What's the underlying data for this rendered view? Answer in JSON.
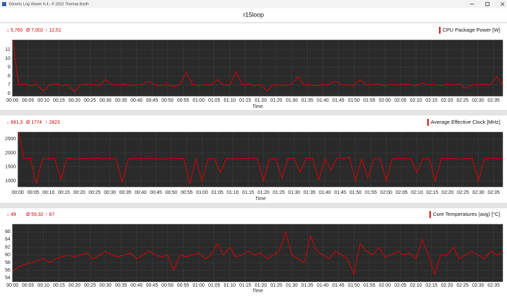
{
  "window": {
    "title": "Generic Log Viewer 6.4 - © 2022 Thomas Barth"
  },
  "header": {
    "title": "r15loop"
  },
  "chart_data": [
    {
      "type": "line",
      "stats": [
        "↓ 5,765",
        "Ø 7,002",
        "↑ 12,51"
      ],
      "x_label": "Time",
      "ylim": [
        5.7,
        12.1
      ],
      "yticks": [
        6,
        7,
        8,
        9,
        10,
        11
      ],
      "xlim": [
        0,
        158
      ],
      "xticks": [
        {
          "value": 0,
          "label": "00:00"
        },
        {
          "value": 5,
          "label": "00:05"
        },
        {
          "value": 10,
          "label": "00:10"
        },
        {
          "value": 15,
          "label": "00:15"
        },
        {
          "value": 20,
          "label": "00:20"
        },
        {
          "value": 25,
          "label": "00:25"
        },
        {
          "value": 30,
          "label": "00:30"
        },
        {
          "value": 35,
          "label": "00:35"
        },
        {
          "value": 40,
          "label": "00:40"
        },
        {
          "value": 45,
          "label": "00:45"
        },
        {
          "value": 50,
          "label": "00:50"
        },
        {
          "value": 55,
          "label": "00:55"
        },
        {
          "value": 60,
          "label": "01:00"
        },
        {
          "value": 65,
          "label": "01:05"
        },
        {
          "value": 70,
          "label": "01:10"
        },
        {
          "value": 75,
          "label": "01:15"
        },
        {
          "value": 80,
          "label": "01:20"
        },
        {
          "value": 85,
          "label": "01:25"
        },
        {
          "value": 90,
          "label": "01:30"
        },
        {
          "value": 95,
          "label": "01:35"
        },
        {
          "value": 100,
          "label": "01:40"
        },
        {
          "value": 105,
          "label": "01:45"
        },
        {
          "value": 110,
          "label": "01:50"
        },
        {
          "value": 115,
          "label": "01:55"
        },
        {
          "value": 120,
          "label": "02:00"
        },
        {
          "value": 125,
          "label": "02:05"
        },
        {
          "value": 130,
          "label": "02:10"
        },
        {
          "value": 135,
          "label": "02:15"
        },
        {
          "value": 140,
          "label": "02:20"
        },
        {
          "value": 145,
          "label": "02:25"
        },
        {
          "value": 150,
          "label": "02:30"
        },
        {
          "value": 155,
          "label": "02:35"
        }
      ],
      "x": [
        0,
        2,
        4,
        6,
        8,
        10,
        12,
        14,
        16,
        18,
        20,
        22,
        24,
        26,
        28,
        30,
        32,
        34,
        36,
        38,
        40,
        42,
        44,
        46,
        48,
        50,
        52,
        54,
        56,
        58,
        60,
        62,
        64,
        66,
        68,
        70,
        72,
        74,
        76,
        78,
        80,
        82,
        84,
        86,
        88,
        90,
        92,
        94,
        96,
        98,
        100,
        102,
        104,
        106,
        108,
        110,
        112,
        114,
        116,
        118,
        120,
        122,
        124,
        126,
        128,
        130,
        132,
        134,
        136,
        138,
        140,
        142,
        144,
        146,
        148,
        150,
        152,
        154,
        156,
        158
      ],
      "series": [
        {
          "name": "CPU Package Power [W]",
          "color": "#e00000",
          "values": [
            12.5,
            7.0,
            7.1,
            6.9,
            7.0,
            6.3,
            7.0,
            7.1,
            6.9,
            7.0,
            6.2,
            7.0,
            7.1,
            7.0,
            6.9,
            7.6,
            7.0,
            7.0,
            7.1,
            6.9,
            7.0,
            7.1,
            7.4,
            7.0,
            6.9,
            7.0,
            6.8,
            7.1,
            8.4,
            7.0,
            6.9,
            7.0,
            7.0,
            7.6,
            7.0,
            6.9,
            8.5,
            7.0,
            7.1,
            6.9,
            7.0,
            6.3,
            7.0,
            7.0,
            6.9,
            7.1,
            7.9,
            7.0,
            7.0,
            6.9,
            7.0,
            7.1,
            7.4,
            7.0,
            7.0,
            6.9,
            7.6,
            7.0,
            7.0,
            7.1,
            6.9,
            7.0,
            7.0,
            7.1,
            7.0,
            6.9,
            7.2,
            7.0,
            7.0,
            6.9,
            7.0,
            7.0,
            7.1,
            6.6,
            7.0,
            7.0,
            7.1,
            7.0,
            7.9,
            7.0
          ]
        }
      ]
    },
    {
      "type": "line",
      "stats": [
        "↓ 681,3",
        "Ø 1774",
        "↑ 2823"
      ],
      "x_label": "Time",
      "ylim": [
        780,
        2750
      ],
      "yticks": [
        1000,
        1500,
        2000,
        2500
      ],
      "xlim": [
        0,
        158
      ],
      "xticks": [
        {
          "value": 0,
          "label": "00:00"
        },
        {
          "value": 5,
          "label": "00:05"
        },
        {
          "value": 10,
          "label": "00:10"
        },
        {
          "value": 15,
          "label": "00:15"
        },
        {
          "value": 20,
          "label": "00:20"
        },
        {
          "value": 25,
          "label": "00:25"
        },
        {
          "value": 30,
          "label": "00:30"
        },
        {
          "value": 35,
          "label": "00:35"
        },
        {
          "value": 40,
          "label": "00:40"
        },
        {
          "value": 45,
          "label": "00:45"
        },
        {
          "value": 50,
          "label": "00:50"
        },
        {
          "value": 55,
          "label": "00:55"
        },
        {
          "value": 60,
          "label": "01:00"
        },
        {
          "value": 65,
          "label": "01:05"
        },
        {
          "value": 70,
          "label": "01:10"
        },
        {
          "value": 75,
          "label": "01:15"
        },
        {
          "value": 80,
          "label": "01:20"
        },
        {
          "value": 85,
          "label": "01:25"
        },
        {
          "value": 90,
          "label": "01:30"
        },
        {
          "value": 95,
          "label": "01:35"
        },
        {
          "value": 100,
          "label": "01:40"
        },
        {
          "value": 105,
          "label": "01:45"
        },
        {
          "value": 110,
          "label": "01:50"
        },
        {
          "value": 115,
          "label": "01:55"
        },
        {
          "value": 120,
          "label": "02:00"
        },
        {
          "value": 125,
          "label": "02:05"
        },
        {
          "value": 130,
          "label": "02:10"
        },
        {
          "value": 135,
          "label": "02:15"
        },
        {
          "value": 140,
          "label": "02:20"
        },
        {
          "value": 145,
          "label": "02:25"
        },
        {
          "value": 150,
          "label": "02:30"
        },
        {
          "value": 155,
          "label": "02:35"
        }
      ],
      "x": [
        0,
        2,
        4,
        6,
        8,
        10,
        12,
        14,
        16,
        18,
        20,
        22,
        24,
        26,
        28,
        30,
        32,
        34,
        36,
        38,
        40,
        42,
        44,
        46,
        48,
        50,
        52,
        54,
        56,
        58,
        60,
        62,
        64,
        66,
        68,
        70,
        72,
        74,
        76,
        78,
        80,
        82,
        84,
        86,
        88,
        90,
        92,
        94,
        96,
        98,
        100,
        102,
        104,
        106,
        108,
        110,
        112,
        114,
        116,
        118,
        120,
        122,
        124,
        126,
        128,
        130,
        132,
        134,
        136,
        138,
        140,
        142,
        144,
        146,
        148,
        150,
        152,
        154,
        156,
        158
      ],
      "series": [
        {
          "name": "Average Effective Clock [MHz]",
          "color": "#e00000",
          "values": [
            2823,
            1790,
            1810,
            900,
            1780,
            1800,
            1790,
            1050,
            1810,
            1790,
            1780,
            1800,
            1790,
            1810,
            1780,
            1800,
            1790,
            950,
            1780,
            1800,
            1790,
            1810,
            1800,
            1780,
            1790,
            1810,
            1800,
            1790,
            900,
            1780,
            1000,
            1800,
            1790,
            1300,
            1810,
            1780,
            1800,
            1790,
            1810,
            1800,
            1000,
            1790,
            1800,
            1100,
            1810,
            1790,
            1300,
            1820,
            1800,
            1050,
            1790,
            1400,
            1830,
            1800,
            1850,
            1000,
            1790,
            1100,
            1800,
            1790,
            1000,
            1780,
            1800,
            1790,
            1810,
            1300,
            1800,
            1790,
            1000,
            1810,
            1790,
            1800,
            1780,
            1790,
            1800,
            1000,
            1790,
            1810,
            1800,
            1790
          ]
        }
      ]
    },
    {
      "type": "line",
      "stats": [
        "↓ 49",
        "Ø 59,32",
        "↑ 67"
      ],
      "x_label": "Time",
      "ylim": [
        53,
        68
      ],
      "yticks": [
        54,
        56,
        58,
        60,
        62,
        64,
        66
      ],
      "xlim": [
        0,
        158
      ],
      "xticks": [
        {
          "value": 0,
          "label": "00:00"
        },
        {
          "value": 5,
          "label": "00:05"
        },
        {
          "value": 10,
          "label": "00:10"
        },
        {
          "value": 15,
          "label": "00:15"
        },
        {
          "value": 20,
          "label": "00:20"
        },
        {
          "value": 25,
          "label": "00:25"
        },
        {
          "value": 30,
          "label": "00:30"
        },
        {
          "value": 35,
          "label": "00:35"
        },
        {
          "value": 40,
          "label": "00:40"
        },
        {
          "value": 45,
          "label": "00:45"
        },
        {
          "value": 50,
          "label": "00:50"
        },
        {
          "value": 55,
          "label": "00:55"
        },
        {
          "value": 60,
          "label": "01:00"
        },
        {
          "value": 65,
          "label": "01:05"
        },
        {
          "value": 70,
          "label": "01:10"
        },
        {
          "value": 75,
          "label": "01:15"
        },
        {
          "value": 80,
          "label": "01:20"
        },
        {
          "value": 85,
          "label": "01:25"
        },
        {
          "value": 90,
          "label": "01:30"
        },
        {
          "value": 95,
          "label": "01:35"
        },
        {
          "value": 100,
          "label": "01:40"
        },
        {
          "value": 105,
          "label": "01:45"
        },
        {
          "value": 110,
          "label": "01:50"
        },
        {
          "value": 115,
          "label": "01:55"
        },
        {
          "value": 120,
          "label": "02:00"
        },
        {
          "value": 125,
          "label": "02:05"
        },
        {
          "value": 130,
          "label": "02:10"
        },
        {
          "value": 135,
          "label": "02:15"
        },
        {
          "value": 140,
          "label": "02:20"
        },
        {
          "value": 145,
          "label": "02:25"
        },
        {
          "value": 150,
          "label": "02:30"
        },
        {
          "value": 155,
          "label": "02:35"
        }
      ],
      "x": [
        0,
        2,
        4,
        6,
        8,
        10,
        12,
        14,
        16,
        18,
        20,
        22,
        24,
        26,
        28,
        30,
        32,
        34,
        36,
        38,
        40,
        42,
        44,
        46,
        48,
        50,
        52,
        54,
        56,
        58,
        60,
        62,
        64,
        66,
        68,
        70,
        72,
        74,
        76,
        78,
        80,
        82,
        84,
        86,
        88,
        90,
        92,
        94,
        96,
        98,
        100,
        102,
        104,
        106,
        108,
        110,
        112,
        114,
        116,
        118,
        120,
        122,
        124,
        126,
        128,
        130,
        132,
        134,
        136,
        138,
        140,
        142,
        144,
        146,
        148,
        150,
        152,
        154,
        156,
        158
      ],
      "series": [
        {
          "name": "Core Temperatures (avg) [°C]",
          "color": "#e00000",
          "values": [
            55.5,
            57,
            57.5,
            58,
            58.5,
            59,
            58,
            59,
            59.5,
            60,
            59.5,
            60,
            60.5,
            59,
            60,
            61,
            60,
            59.5,
            60,
            60.5,
            59,
            60,
            61,
            60,
            59.5,
            60,
            56,
            60,
            59.5,
            60,
            60.5,
            59,
            60,
            63,
            60,
            62,
            59.5,
            60,
            61,
            60,
            60.5,
            59,
            60,
            61,
            66,
            60,
            59,
            58,
            65,
            61,
            60,
            59,
            61,
            60,
            59,
            55,
            63,
            61,
            60,
            62,
            59.5,
            60,
            61,
            60,
            60.5,
            59,
            64,
            60,
            55,
            60,
            60,
            62,
            59,
            60,
            61,
            60,
            59,
            61,
            60,
            60.5
          ]
        }
      ]
    }
  ]
}
